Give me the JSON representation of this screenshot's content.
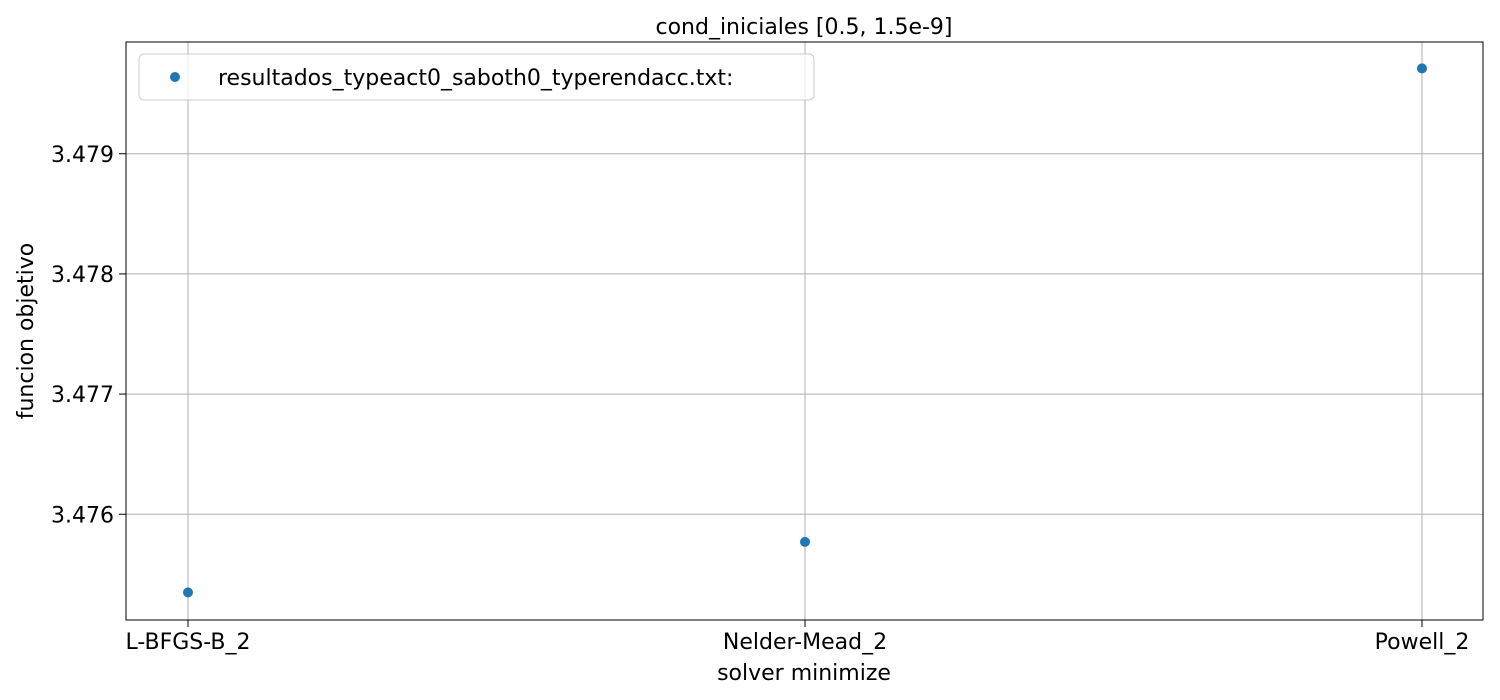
{
  "chart_data": {
    "type": "scatter",
    "title": "cond_iniciales [0.5, 1.5e-9]",
    "xlabel": "solver minimize",
    "ylabel": "funcion objetivo",
    "categories": [
      "L-BFGS-B_2",
      "Nelder-Mead_2",
      "Powell_2"
    ],
    "series": [
      {
        "name": "resultados_typeact0_saboth0_typerendacc.txt:",
        "values": [
          3.47535,
          3.47577,
          3.47971
        ],
        "color": "#1f77b4"
      }
    ],
    "yticks": [
      3.476,
      3.477,
      3.478,
      3.479
    ],
    "ytick_labels": [
      "3.476",
      "3.477",
      "3.478",
      "3.479"
    ],
    "ylim": [
      3.47512,
      3.47993
    ],
    "grid": true,
    "legend_position": "top-left"
  }
}
